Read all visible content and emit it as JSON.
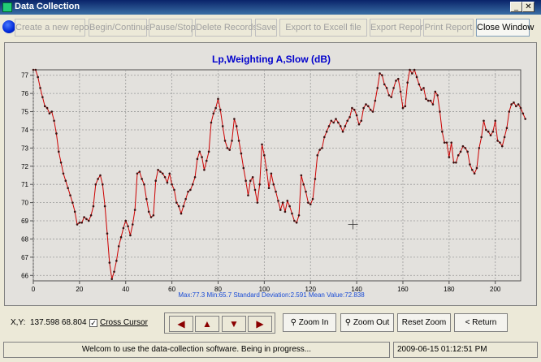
{
  "window": {
    "title": "Data Collection"
  },
  "toolbar": {
    "buttons": [
      {
        "label": "Create a new report",
        "enabled": false
      },
      {
        "label": "Begin/Continue",
        "enabled": false
      },
      {
        "label": "Pause/Stop",
        "enabled": false
      },
      {
        "label": "Delete Records",
        "enabled": false
      },
      {
        "label": "Save",
        "enabled": false
      },
      {
        "label": "Export to Excell file",
        "enabled": false
      },
      {
        "label": "Export Report",
        "enabled": false
      },
      {
        "label": "Print Report",
        "enabled": false
      },
      {
        "label": "Close Window",
        "enabled": true
      }
    ]
  },
  "chart_data": {
    "type": "line",
    "title": "Lp,Weighting A,Slow (dB)",
    "xlim": [
      0,
      211
    ],
    "ylim": [
      65.7,
      77.3
    ],
    "xticks": [
      0,
      20,
      40,
      60,
      80,
      100,
      120,
      140,
      160,
      180,
      200
    ],
    "yticks": [
      66,
      67,
      68,
      69,
      70,
      71,
      72,
      73,
      74,
      75,
      76,
      77
    ],
    "grid": true,
    "series_color": "#cc0000",
    "marker_color": "#3a1010",
    "x_step": 1,
    "values": [
      77.3,
      77.3,
      76.9,
      76.3,
      75.8,
      75.3,
      75.2,
      74.9,
      75.0,
      74.5,
      73.8,
      72.8,
      72.2,
      71.6,
      71.2,
      70.8,
      70.4,
      70.0,
      69.5,
      68.8,
      68.9,
      68.9,
      69.2,
      69.1,
      69.0,
      69.3,
      69.8,
      71.0,
      71.3,
      71.5,
      71.0,
      69.8,
      68.3,
      66.7,
      65.8,
      66.2,
      66.8,
      67.6,
      68.1,
      68.6,
      69.0,
      68.7,
      68.2,
      68.8,
      69.6,
      71.6,
      71.7,
      71.3,
      71.0,
      70.2,
      69.5,
      69.2,
      69.3,
      71.2,
      71.8,
      71.7,
      71.6,
      71.4,
      71.1,
      71.6,
      71.0,
      70.7,
      70.0,
      69.8,
      69.4,
      69.8,
      70.2,
      70.6,
      70.7,
      71.0,
      71.4,
      72.4,
      72.8,
      72.5,
      71.8,
      72.3,
      72.8,
      74.4,
      74.9,
      75.2,
      75.7,
      75.1,
      74.2,
      73.4,
      73.0,
      72.9,
      73.4,
      74.6,
      74.2,
      73.4,
      72.7,
      71.9,
      71.2,
      70.4,
      71.2,
      71.4,
      70.7,
      70.0,
      71.0,
      73.2,
      72.6,
      71.8,
      70.8,
      71.6,
      71.0,
      70.6,
      70.1,
      69.6,
      70.0,
      69.5,
      70.1,
      69.8,
      69.4,
      69.0,
      68.9,
      69.3,
      71.5,
      71.0,
      70.6,
      70.0,
      69.9,
      70.2,
      71.3,
      72.6,
      72.9,
      73.0,
      73.6,
      73.9,
      74.2,
      74.5,
      74.4,
      74.6,
      74.4,
      74.2,
      73.9,
      74.2,
      74.5,
      74.7,
      75.2,
      75.1,
      74.8,
      74.3,
      74.5,
      75.2,
      75.4,
      75.3,
      75.1,
      75.0,
      75.6,
      76.3,
      77.1,
      77.0,
      76.5,
      76.3,
      75.9,
      75.8,
      76.3,
      76.7,
      76.8,
      76.1,
      75.2,
      75.3,
      76.6,
      77.3,
      77.1,
      77.3,
      76.9,
      76.5,
      76.2,
      76.3,
      75.7,
      75.6,
      75.6,
      75.4,
      76.1,
      75.9,
      75.0,
      73.9,
      73.3,
      73.3,
      72.5,
      73.3,
      72.2,
      72.2,
      72.6,
      72.8,
      73.1,
      73.0,
      72.8,
      72.1,
      71.8,
      71.6,
      71.9,
      73.0,
      73.6,
      74.5,
      74.0,
      73.9,
      73.7,
      73.9,
      74.5,
      73.4,
      73.3,
      73.1,
      73.6,
      74.1,
      75.0,
      75.4,
      75.5,
      75.3,
      75.4,
      75.2,
      74.9,
      74.6
    ]
  },
  "stats_text": "Max:77.3  Min:65.7 Standard Deviation:2.591 Mean Value:72.838",
  "bottom": {
    "xy_label": "X,Y:",
    "xy_value": "137.598 68.804",
    "cross_cursor_label": "Cross Cursor",
    "cross_cursor_checked": true,
    "zoom_in": "Zoom In",
    "zoom_out": "Zoom Out",
    "reset_zoom": "Reset Zoom",
    "return": "< Return"
  },
  "statusbar": {
    "message": "Welcom to use the data-collection software. Being in progress...",
    "datetime": "2009-06-15 01:12:51 PM"
  },
  "icons": {
    "left": "left-arrow-icon",
    "up": "up-arrow-icon",
    "down": "down-arrow-icon",
    "right": "right-arrow-icon"
  }
}
